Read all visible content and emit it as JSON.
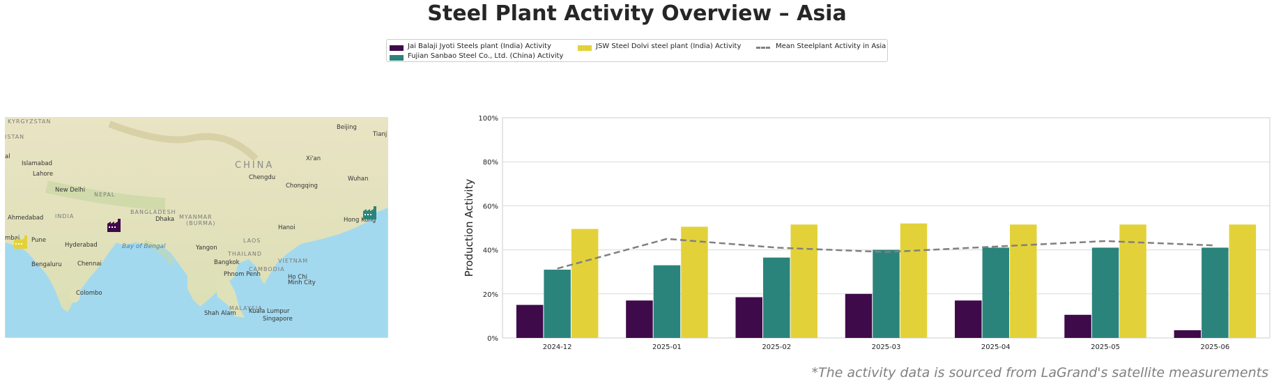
{
  "title": "Steel Plant Activity Overview – Asia",
  "footer": "*The activity data is sourced from LaGrand's satellite measurements",
  "colors": {
    "jai": "#3f0a4a",
    "fujian": "#2b847b",
    "jsw": "#e3d13a",
    "mean": "#808080"
  },
  "legend": {
    "jai": "Jai Balaji Jyoti Steels plant (India) Activity",
    "fujian": "Fujian Sanbao Steel Co., Ltd. (China) Activity",
    "jsw": "JSW Steel Dolvi steel plant (India) Activity",
    "mean": "Mean Steelplant Activity in Asia"
  },
  "map": {
    "labels": {
      "kyrgyzstan": "KYRGYZSTAN",
      "istan": "ISTAN",
      "beijing": "Beijing",
      "tianjin": "Tianj",
      "xian": "Xi'an",
      "islamabad": "Islamabad",
      "lahore": "Lahore",
      "china": "CHINA",
      "chengdu": "Chengdu",
      "chongqing": "Chongqing",
      "wuhan": "Wuhan",
      "new_delhi": "New Delhi",
      "nepal": "NEPAL",
      "india": "INDIA",
      "ahmedabad": "Ahmedabad",
      "bangladesh": "BANGLADESH",
      "dhaka": "Dhaka",
      "myanmar": "MYANMAR",
      "burma": "(BURMA)",
      "hanoi": "Hanoi",
      "hong_kong": "Hong Kong",
      "mumbai": "mbai",
      "pune": "Pune",
      "hyderabad": "Hyderabad",
      "bay": "Bay of Bengal",
      "yangon": "Yangon",
      "laos": "LAOS",
      "thailand": "THAILAND",
      "bangkok": "Bangkok",
      "vietnam": "VIETNAM",
      "cambodia": "CAMBODIA",
      "phnom_penh": "Phnom Penh",
      "ho_chi_minh": "Ho Chi",
      "minh_city": "Minh City",
      "bengaluru": "Bengaluru",
      "chennai": "Chennai",
      "colombo": "Colombo",
      "malaysia": "MALAYSIA",
      "shah_alam": "Shah Alam",
      "kuala_lumpur": "Kuala Lumpur",
      "singapore": "Singapore",
      "al": "al"
    }
  },
  "chart_data": {
    "type": "bar",
    "categories": [
      "2024-12",
      "2025-01",
      "2025-02",
      "2025-03",
      "2025-04",
      "2025-05",
      "2025-06"
    ],
    "series": [
      {
        "name": "Jai Balaji Jyoti Steels plant (India) Activity",
        "color": "#3f0a4a",
        "values": [
          15,
          17,
          18.5,
          20,
          17,
          10.5,
          3.5
        ]
      },
      {
        "name": "Fujian Sanbao Steel Co., Ltd. (China) Activity",
        "color": "#2b847b",
        "values": [
          31,
          33,
          36.5,
          40,
          41,
          41,
          41
        ]
      },
      {
        "name": "JSW Steel Dolvi steel plant (India) Activity",
        "color": "#e3d13a",
        "values": [
          49.5,
          50.5,
          51.5,
          52,
          51.5,
          51.5,
          51.5
        ]
      }
    ],
    "line": {
      "name": "Mean Steelplant Activity in Asia",
      "color": "#808080",
      "style": "dashed",
      "values": [
        31.5,
        45,
        41,
        39,
        41.5,
        44,
        42
      ]
    },
    "ylabel": "Production Activity",
    "xlabel": "",
    "ylim": [
      0,
      100
    ],
    "yticks": [
      0,
      20,
      40,
      60,
      80,
      100
    ],
    "ytick_labels": [
      "0%",
      "20%",
      "40%",
      "60%",
      "80%",
      "100%"
    ],
    "grid": "horizontal",
    "legend_position": "top-center"
  }
}
